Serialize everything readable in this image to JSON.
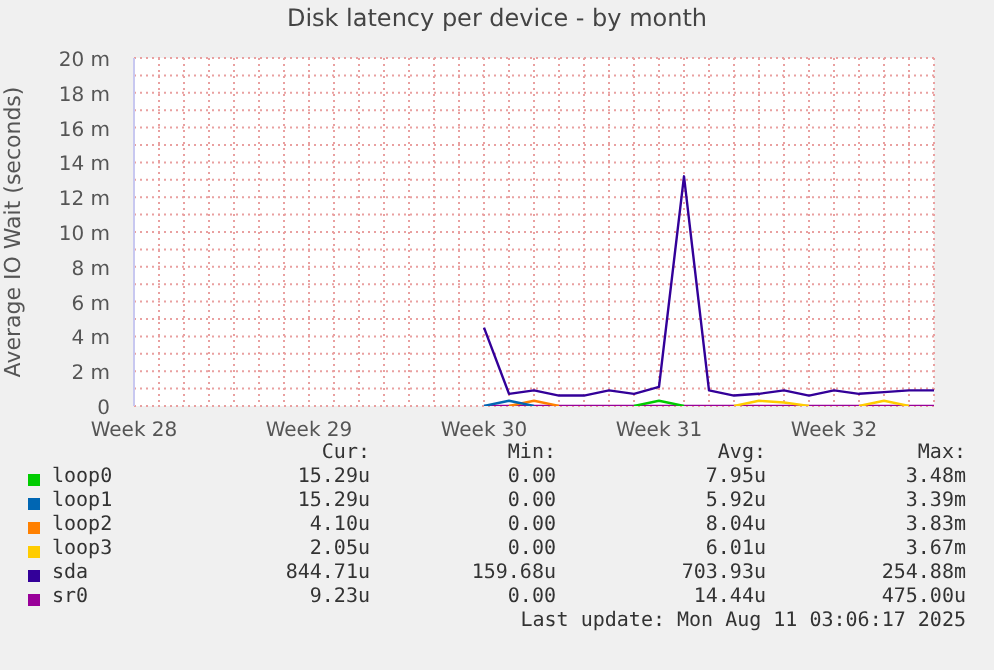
{
  "chart_data": {
    "type": "line",
    "title": "Disk latency per device - by month",
    "ylabel": "Average IO Wait (seconds)",
    "categories": [
      "Week 28",
      null,
      null,
      null,
      null,
      null,
      null,
      "Week 29",
      null,
      null,
      null,
      null,
      null,
      null,
      "Week 30",
      null,
      null,
      null,
      null,
      null,
      null,
      "Week 31",
      null,
      null,
      null,
      null,
      null,
      null,
      "Week 32",
      null,
      null,
      null,
      null
    ],
    "ylim": [
      0,
      20
    ],
    "yticks": [
      0,
      {
        "value": 1,
        "label": null
      },
      {
        "value": 2,
        "label": "2 m"
      },
      {
        "value": 3,
        "label": null
      },
      {
        "value": 4,
        "label": "4 m"
      },
      {
        "value": 5,
        "label": null
      },
      {
        "value": 6,
        "label": "6 m"
      },
      {
        "value": 7,
        "label": null
      },
      {
        "value": 8,
        "label": "8 m"
      },
      {
        "value": 9,
        "label": null
      },
      {
        "value": 10,
        "label": "10 m"
      },
      {
        "value": 11,
        "label": null
      },
      {
        "value": 12,
        "label": "12 m"
      },
      {
        "value": 13,
        "label": null
      },
      {
        "value": 14,
        "label": "14 m"
      },
      {
        "value": 15,
        "label": null
      },
      {
        "value": 16,
        "label": "16 m"
      },
      {
        "value": 17,
        "label": null
      },
      {
        "value": 18,
        "label": "18 m"
      },
      {
        "value": 19,
        "label": null
      },
      {
        "value": 20,
        "label": "20 m"
      }
    ],
    "grid": true,
    "legend": "bottom",
    "marker": "none",
    "line_style": "solid",
    "series": [
      {
        "name": "loop0",
        "color": "#00cc00",
        "values": [
          null,
          null,
          null,
          null,
          null,
          null,
          null,
          null,
          null,
          null,
          null,
          null,
          null,
          null,
          null,
          null,
          null,
          null,
          null,
          null,
          0,
          0.3,
          0,
          null,
          null,
          null,
          null,
          null,
          null,
          null,
          null,
          null,
          null
        ]
      },
      {
        "name": "loop1",
        "color": "#0066b3",
        "values": [
          null,
          null,
          null,
          null,
          null,
          null,
          null,
          null,
          null,
          null,
          null,
          null,
          null,
          null,
          0,
          0.3,
          0,
          null,
          null,
          null,
          null,
          null,
          null,
          null,
          null,
          null,
          null,
          null,
          null,
          null,
          null,
          null,
          null
        ]
      },
      {
        "name": "loop2",
        "color": "#ff8000",
        "values": [
          null,
          null,
          null,
          null,
          null,
          null,
          null,
          null,
          null,
          null,
          null,
          null,
          null,
          null,
          null,
          0,
          0.3,
          0,
          null,
          null,
          null,
          null,
          null,
          null,
          null,
          null,
          null,
          null,
          null,
          null,
          null,
          null,
          null
        ]
      },
      {
        "name": "loop3",
        "color": "#ffcc00",
        "values": [
          null,
          null,
          null,
          null,
          null,
          null,
          null,
          null,
          null,
          null,
          null,
          null,
          null,
          null,
          null,
          null,
          null,
          null,
          null,
          null,
          null,
          null,
          null,
          null,
          0,
          0.3,
          0.2,
          0,
          null,
          0,
          0.3,
          0,
          null
        ]
      },
      {
        "name": "sda",
        "color": "#330099",
        "values": [
          null,
          null,
          null,
          null,
          null,
          null,
          null,
          null,
          null,
          null,
          null,
          null,
          null,
          null,
          4.5,
          0.7,
          0.9,
          0.6,
          0.6,
          0.9,
          0.7,
          1.1,
          13.2,
          0.9,
          0.6,
          0.7,
          0.9,
          0.6,
          0.9,
          0.7,
          0.8,
          0.9,
          0.9
        ]
      },
      {
        "name": "sr0",
        "color": "#990099",
        "values": [
          null,
          null,
          null,
          null,
          null,
          null,
          null,
          null,
          null,
          null,
          null,
          null,
          null,
          null,
          0,
          0,
          0,
          0,
          0,
          0,
          0,
          0,
          0,
          0,
          0,
          0,
          0,
          0,
          0,
          0,
          0,
          0,
          0
        ]
      }
    ],
    "annotations": [
      "Cur:",
      "Min:",
      "Avg:",
      "Max:",
      "15.29u",
      "0.00",
      "7.95u",
      "3.48m",
      "15.29u",
      "0.00",
      "5.92u",
      "3.39m",
      "4.10u",
      "0.00",
      "8.04u",
      "3.83m",
      "2.05u",
      "0.00",
      "6.01u",
      "3.67m",
      "844.71u",
      "159.68u",
      "703.93u",
      "254.88m",
      "9.23u",
      "0.00",
      "14.44u",
      "475.00u",
      "Last update: Mon Aug 11 03:06:17 2025"
    ]
  }
}
